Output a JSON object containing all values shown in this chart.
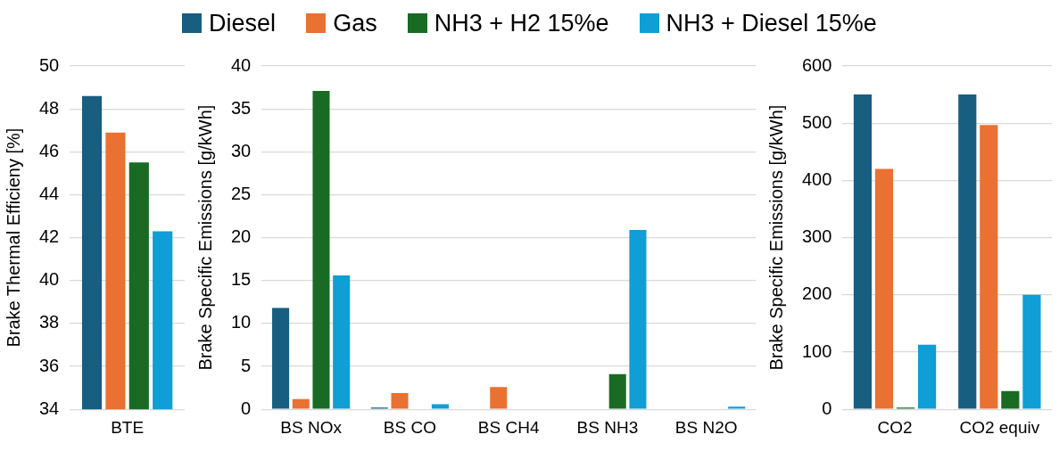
{
  "chart_data": [
    {
      "type": "bar",
      "ylabel": "Brake Thermal Efficieny [%]",
      "categories": [
        "BTE"
      ],
      "ylim": [
        34,
        50
      ],
      "yticks": [
        34,
        36,
        38,
        40,
        42,
        44,
        46,
        48,
        50
      ],
      "grid": "y",
      "legend": "top",
      "series": [
        {
          "name": "Diesel",
          "color": "#175e81",
          "values": [
            48.6
          ]
        },
        {
          "name": "Gas",
          "color": "#e97132",
          "values": [
            46.9
          ]
        },
        {
          "name": "NH3 + H2 15%e",
          "color": "#196b24",
          "values": [
            45.5
          ]
        },
        {
          "name": "NH3 + Diesel 15%e",
          "color": "#0f9ed5",
          "values": [
            42.3
          ]
        }
      ]
    },
    {
      "type": "bar",
      "ylabel": "Brake Specific Emissions [g/kWh]",
      "categories": [
        "BS NOx",
        "BS CO",
        "BS CH4",
        "BS NH3",
        "BS N2O"
      ],
      "ylim": [
        0,
        40
      ],
      "yticks": [
        0,
        5,
        10,
        15,
        20,
        25,
        30,
        35,
        40
      ],
      "grid": "y",
      "series": [
        {
          "color": "#175e81",
          "values": [
            11.8,
            0.2,
            0,
            0,
            0
          ]
        },
        {
          "color": "#e97132",
          "values": [
            1.2,
            1.9,
            2.6,
            0,
            0
          ]
        },
        {
          "color": "#196b24",
          "values": [
            37.1,
            0,
            0,
            4.1,
            null
          ]
        },
        {
          "color": "#0f9ed5",
          "values": [
            15.6,
            0.6,
            null,
            20.9,
            0.3
          ]
        }
      ]
    },
    {
      "type": "bar",
      "ylabel": "Brake Specific Emissions [g/kWh]",
      "categories": [
        "CO2",
        "CO2 equiv"
      ],
      "ylim": [
        0,
        600
      ],
      "yticks": [
        0,
        100,
        200,
        300,
        400,
        500,
        600
      ],
      "grid": "y",
      "series": [
        {
          "color": "#175e81",
          "values": [
            550,
            550
          ]
        },
        {
          "color": "#e97132",
          "values": [
            420,
            497
          ]
        },
        {
          "color": "#196b24",
          "values": [
            3,
            32
          ]
        },
        {
          "color": "#0f9ed5",
          "values": [
            113,
            200
          ]
        }
      ]
    }
  ]
}
